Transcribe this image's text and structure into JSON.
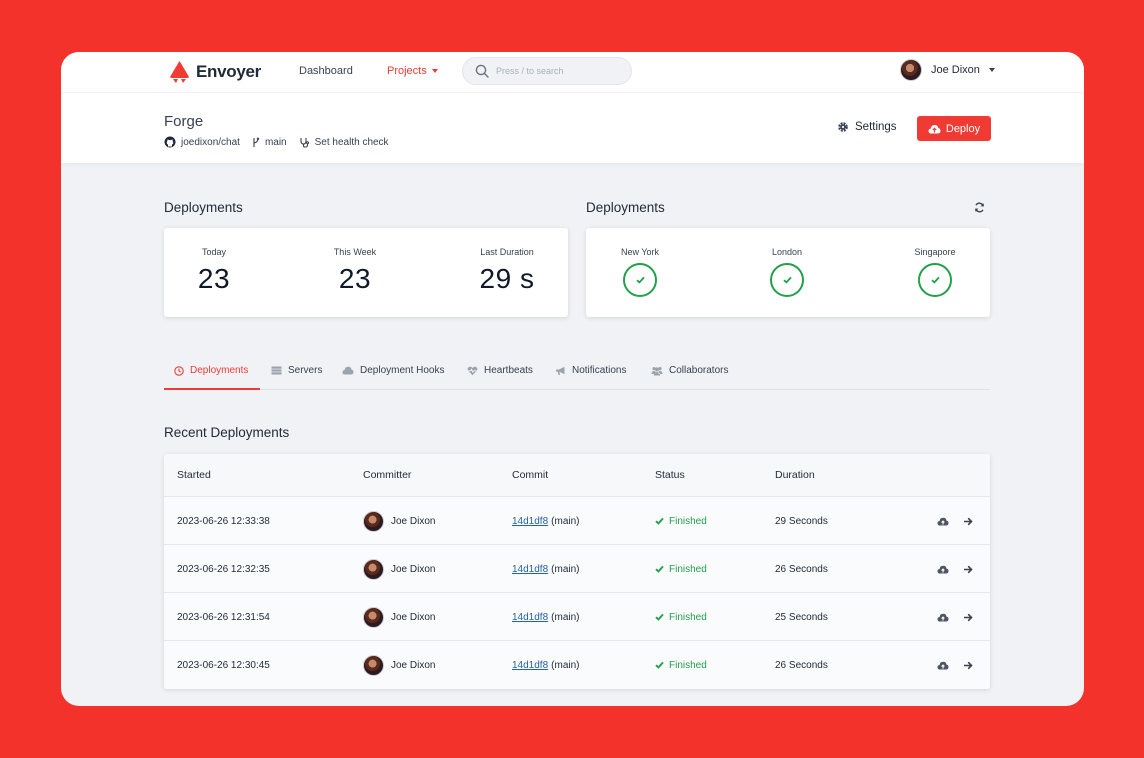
{
  "app": {
    "name": "Envoyer",
    "brand_color": "#ef3b33"
  },
  "nav": {
    "dashboard": "Dashboard",
    "projects": "Projects",
    "search_placeholder": "Press / to search",
    "user_name": "Joe Dixon"
  },
  "project": {
    "title": "Forge",
    "repo": "joedixon/chat",
    "branch": "main",
    "health_check": "Set health check",
    "settings_label": "Settings",
    "deploy_label": "Deploy"
  },
  "stats": {
    "title": "Deployments",
    "items": [
      {
        "label": "Today",
        "value": "23"
      },
      {
        "label": "This Week",
        "value": "23"
      },
      {
        "label": "Last Duration",
        "value": "29 s"
      }
    ]
  },
  "regions": {
    "title": "Deployments",
    "items": [
      {
        "label": "New York",
        "status": "ok"
      },
      {
        "label": "London",
        "status": "ok"
      },
      {
        "label": "Singapore",
        "status": "ok"
      }
    ]
  },
  "tabs": [
    {
      "label": "Deployments",
      "icon": "clock-icon",
      "active": true
    },
    {
      "label": "Servers",
      "icon": "server-icon"
    },
    {
      "label": "Deployment Hooks",
      "icon": "cloud-icon"
    },
    {
      "label": "Heartbeats",
      "icon": "heart-icon"
    },
    {
      "label": "Notifications",
      "icon": "megaphone-icon"
    },
    {
      "label": "Collaborators",
      "icon": "users-icon"
    }
  ],
  "recent": {
    "title": "Recent Deployments",
    "columns": [
      "Started",
      "Committer",
      "Commit",
      "Status",
      "Duration"
    ],
    "rows": [
      {
        "started": "2023-06-26 12:33:38",
        "committer": "Joe Dixon",
        "commit": "14d1df8",
        "branch": "(main)",
        "status": "Finished",
        "duration": "29 Seconds"
      },
      {
        "started": "2023-06-26 12:32:35",
        "committer": "Joe Dixon",
        "commit": "14d1df8",
        "branch": "(main)",
        "status": "Finished",
        "duration": "26 Seconds"
      },
      {
        "started": "2023-06-26 12:31:54",
        "committer": "Joe Dixon",
        "commit": "14d1df8",
        "branch": "(main)",
        "status": "Finished",
        "duration": "25 Seconds"
      },
      {
        "started": "2023-06-26 12:30:45",
        "committer": "Joe Dixon",
        "commit": "14d1df8",
        "branch": "(main)",
        "status": "Finished",
        "duration": "26 Seconds"
      }
    ]
  }
}
